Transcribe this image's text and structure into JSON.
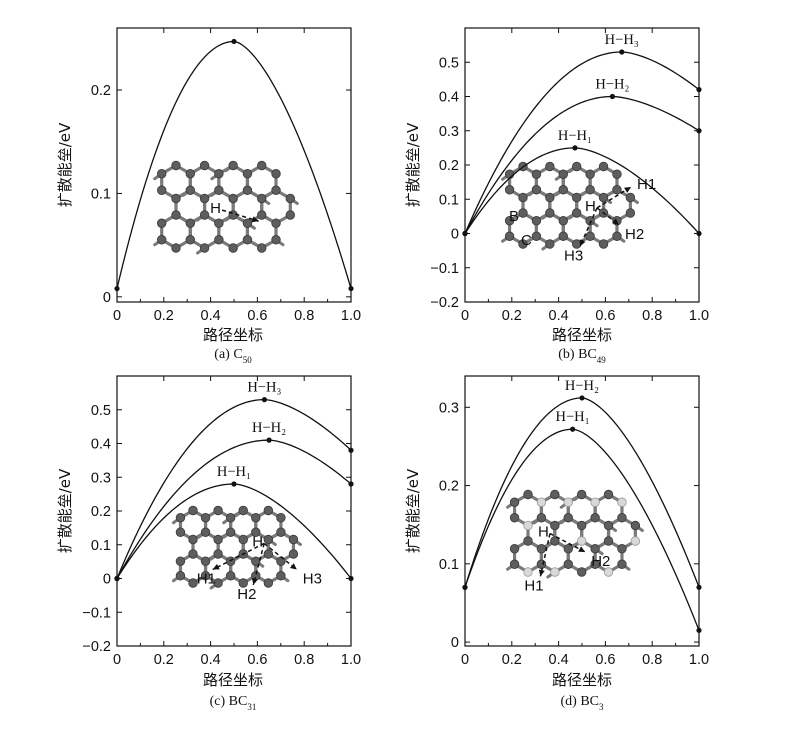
{
  "chart_data": [
    {
      "type": "line",
      "caption": "(a) C",
      "caption_sub": "50",
      "xlabel": "路径坐标",
      "ylabel": "扩散能垒/eV",
      "xlim": [
        0,
        1.0
      ],
      "ylim": [
        -0.005,
        0.26
      ],
      "xticks": [
        "0",
        "0.2",
        "0.4",
        "0.6",
        "0.8",
        "1.0"
      ],
      "yticks": [
        {
          "v": 0,
          "label": "0"
        },
        {
          "v": 0.1,
          "label": "0.1"
        },
        {
          "v": 0.2,
          "label": "0.2"
        }
      ],
      "series": [
        {
          "name": "",
          "peak": [
            0.5,
            0.247
          ],
          "start": [
            0,
            0.008
          ],
          "end": [
            1.0,
            0.008
          ]
        }
      ],
      "inset": {
        "kind": "C",
        "labels": [
          "H"
        ],
        "h": {
          "x": 0.34,
          "y": 0.37
        },
        "arrows": [
          {
            "dx": 0.27,
            "dy": 0.1
          }
        ],
        "substituted": []
      }
    },
    {
      "type": "line",
      "caption": "(b) BC",
      "caption_sub": "49",
      "xlabel": "路径坐标",
      "ylabel": "扩散能垒/eV",
      "xlim": [
        0,
        1.0
      ],
      "ylim": [
        -0.2,
        0.6
      ],
      "xticks": [
        "0",
        "0.2",
        "0.4",
        "0.6",
        "0.8",
        "1.0"
      ],
      "yticks": [
        {
          "v": -0.2,
          "label": "−0.2"
        },
        {
          "v": -0.1,
          "label": "−0.1"
        },
        {
          "v": 0,
          "label": "0"
        },
        {
          "v": 0.1,
          "label": "0.1"
        },
        {
          "v": 0.2,
          "label": "0.2"
        },
        {
          "v": 0.3,
          "label": "0.3"
        },
        {
          "v": 0.4,
          "label": "0.4"
        },
        {
          "v": 0.5,
          "label": "0.5"
        }
      ],
      "series": [
        {
          "name": "H−H₃",
          "peak": [
            0.67,
            0.53
          ],
          "start": [
            0,
            0
          ],
          "end": [
            1.0,
            0.42
          ]
        },
        {
          "name": "H−H₂",
          "peak": [
            0.63,
            0.4
          ],
          "start": [
            0,
            0
          ],
          "end": [
            1.0,
            0.3
          ]
        },
        {
          "name": "H−H₁",
          "peak": [
            0.47,
            0.25
          ],
          "start": [
            0,
            0
          ],
          "end": [
            1.0,
            0.0
          ]
        }
      ],
      "inset": {
        "kind": "B",
        "labels": [
          "H",
          "H1",
          "H2",
          "H3",
          "B",
          "C"
        ],
        "h": {
          "x": 0.56,
          "y": 0.34
        },
        "arrows": [
          {
            "dx": 0.28,
            "dy": -0.14
          },
          {
            "dx": 0.2,
            "dy": 0.14
          },
          {
            "dx": -0.06,
            "dy": 0.3
          }
        ],
        "substituted": [
          [
            2,
            2
          ]
        ]
      }
    },
    {
      "type": "line",
      "caption": "(c) BC",
      "caption_sub": "31",
      "xlabel": "路径坐标",
      "ylabel": "扩散能垒/eV",
      "xlim": [
        0,
        1.0
      ],
      "ylim": [
        -0.2,
        0.6
      ],
      "xticks": [
        "0",
        "0.2",
        "0.4",
        "0.6",
        "0.8",
        "1.0"
      ],
      "yticks": [
        {
          "v": -0.2,
          "label": "−0.2"
        },
        {
          "v": -0.1,
          "label": "−0.1"
        },
        {
          "v": 0,
          "label": "0"
        },
        {
          "v": 0.1,
          "label": "0.1"
        },
        {
          "v": 0.2,
          "label": "0.2"
        },
        {
          "v": 0.3,
          "label": "0.3"
        },
        {
          "v": 0.4,
          "label": "0.4"
        },
        {
          "v": 0.5,
          "label": "0.5"
        }
      ],
      "series": [
        {
          "name": "H−H₃",
          "peak": [
            0.63,
            0.53
          ],
          "start": [
            0,
            0
          ],
          "end": [
            1.0,
            0.38
          ]
        },
        {
          "name": "H−H₂",
          "peak": [
            0.65,
            0.41
          ],
          "start": [
            0,
            0
          ],
          "end": [
            1.0,
            0.28
          ]
        },
        {
          "name": "H−H₁",
          "peak": [
            0.5,
            0.28
          ],
          "start": [
            0,
            0
          ],
          "end": [
            1.0,
            0.0
          ]
        }
      ],
      "inset": {
        "kind": "B",
        "labels": [
          "H",
          "H1",
          "H2",
          "H3"
        ],
        "h": {
          "x": 0.56,
          "y": 0.3
        },
        "arrows": [
          {
            "dx": -0.3,
            "dy": 0.22
          },
          {
            "dx": -0.02,
            "dy": 0.34
          },
          {
            "dx": 0.28,
            "dy": 0.22
          }
        ],
        "substituted": [
          [
            1,
            2
          ]
        ]
      }
    },
    {
      "type": "line",
      "caption": "(d) BC",
      "caption_sub": "3",
      "xlabel": "路径坐标",
      "ylabel": "扩散能垒/eV",
      "xlim": [
        0,
        1.0
      ],
      "ylim": [
        -0.005,
        0.34
      ],
      "xticks": [
        "0",
        "0.2",
        "0.4",
        "0.6",
        "0.8",
        "1.0"
      ],
      "yticks": [
        {
          "v": 0,
          "label": "0"
        },
        {
          "v": 0.1,
          "label": "0.1"
        },
        {
          "v": 0.2,
          "label": "0.2"
        },
        {
          "v": 0.3,
          "label": "0.3"
        }
      ],
      "series": [
        {
          "name": "H−H₂",
          "peak": [
            0.5,
            0.312
          ],
          "start": [
            0,
            0.07
          ],
          "end": [
            1.0,
            0.07
          ]
        },
        {
          "name": "H−H₁",
          "peak": [
            0.46,
            0.272
          ],
          "start": [
            0,
            0.07
          ],
          "end": [
            1.0,
            0.015
          ]
        }
      ],
      "inset": {
        "kind": "BC3",
        "labels": [
          "H",
          "H2",
          "H1"
        ],
        "h": {
          "x": 0.2,
          "y": 0.34
        },
        "arrows": [
          {
            "dx": 0.27,
            "dy": 0.16
          },
          {
            "dx": -0.01,
            "dy": 0.35
          }
        ],
        "substituted": []
      }
    }
  ]
}
